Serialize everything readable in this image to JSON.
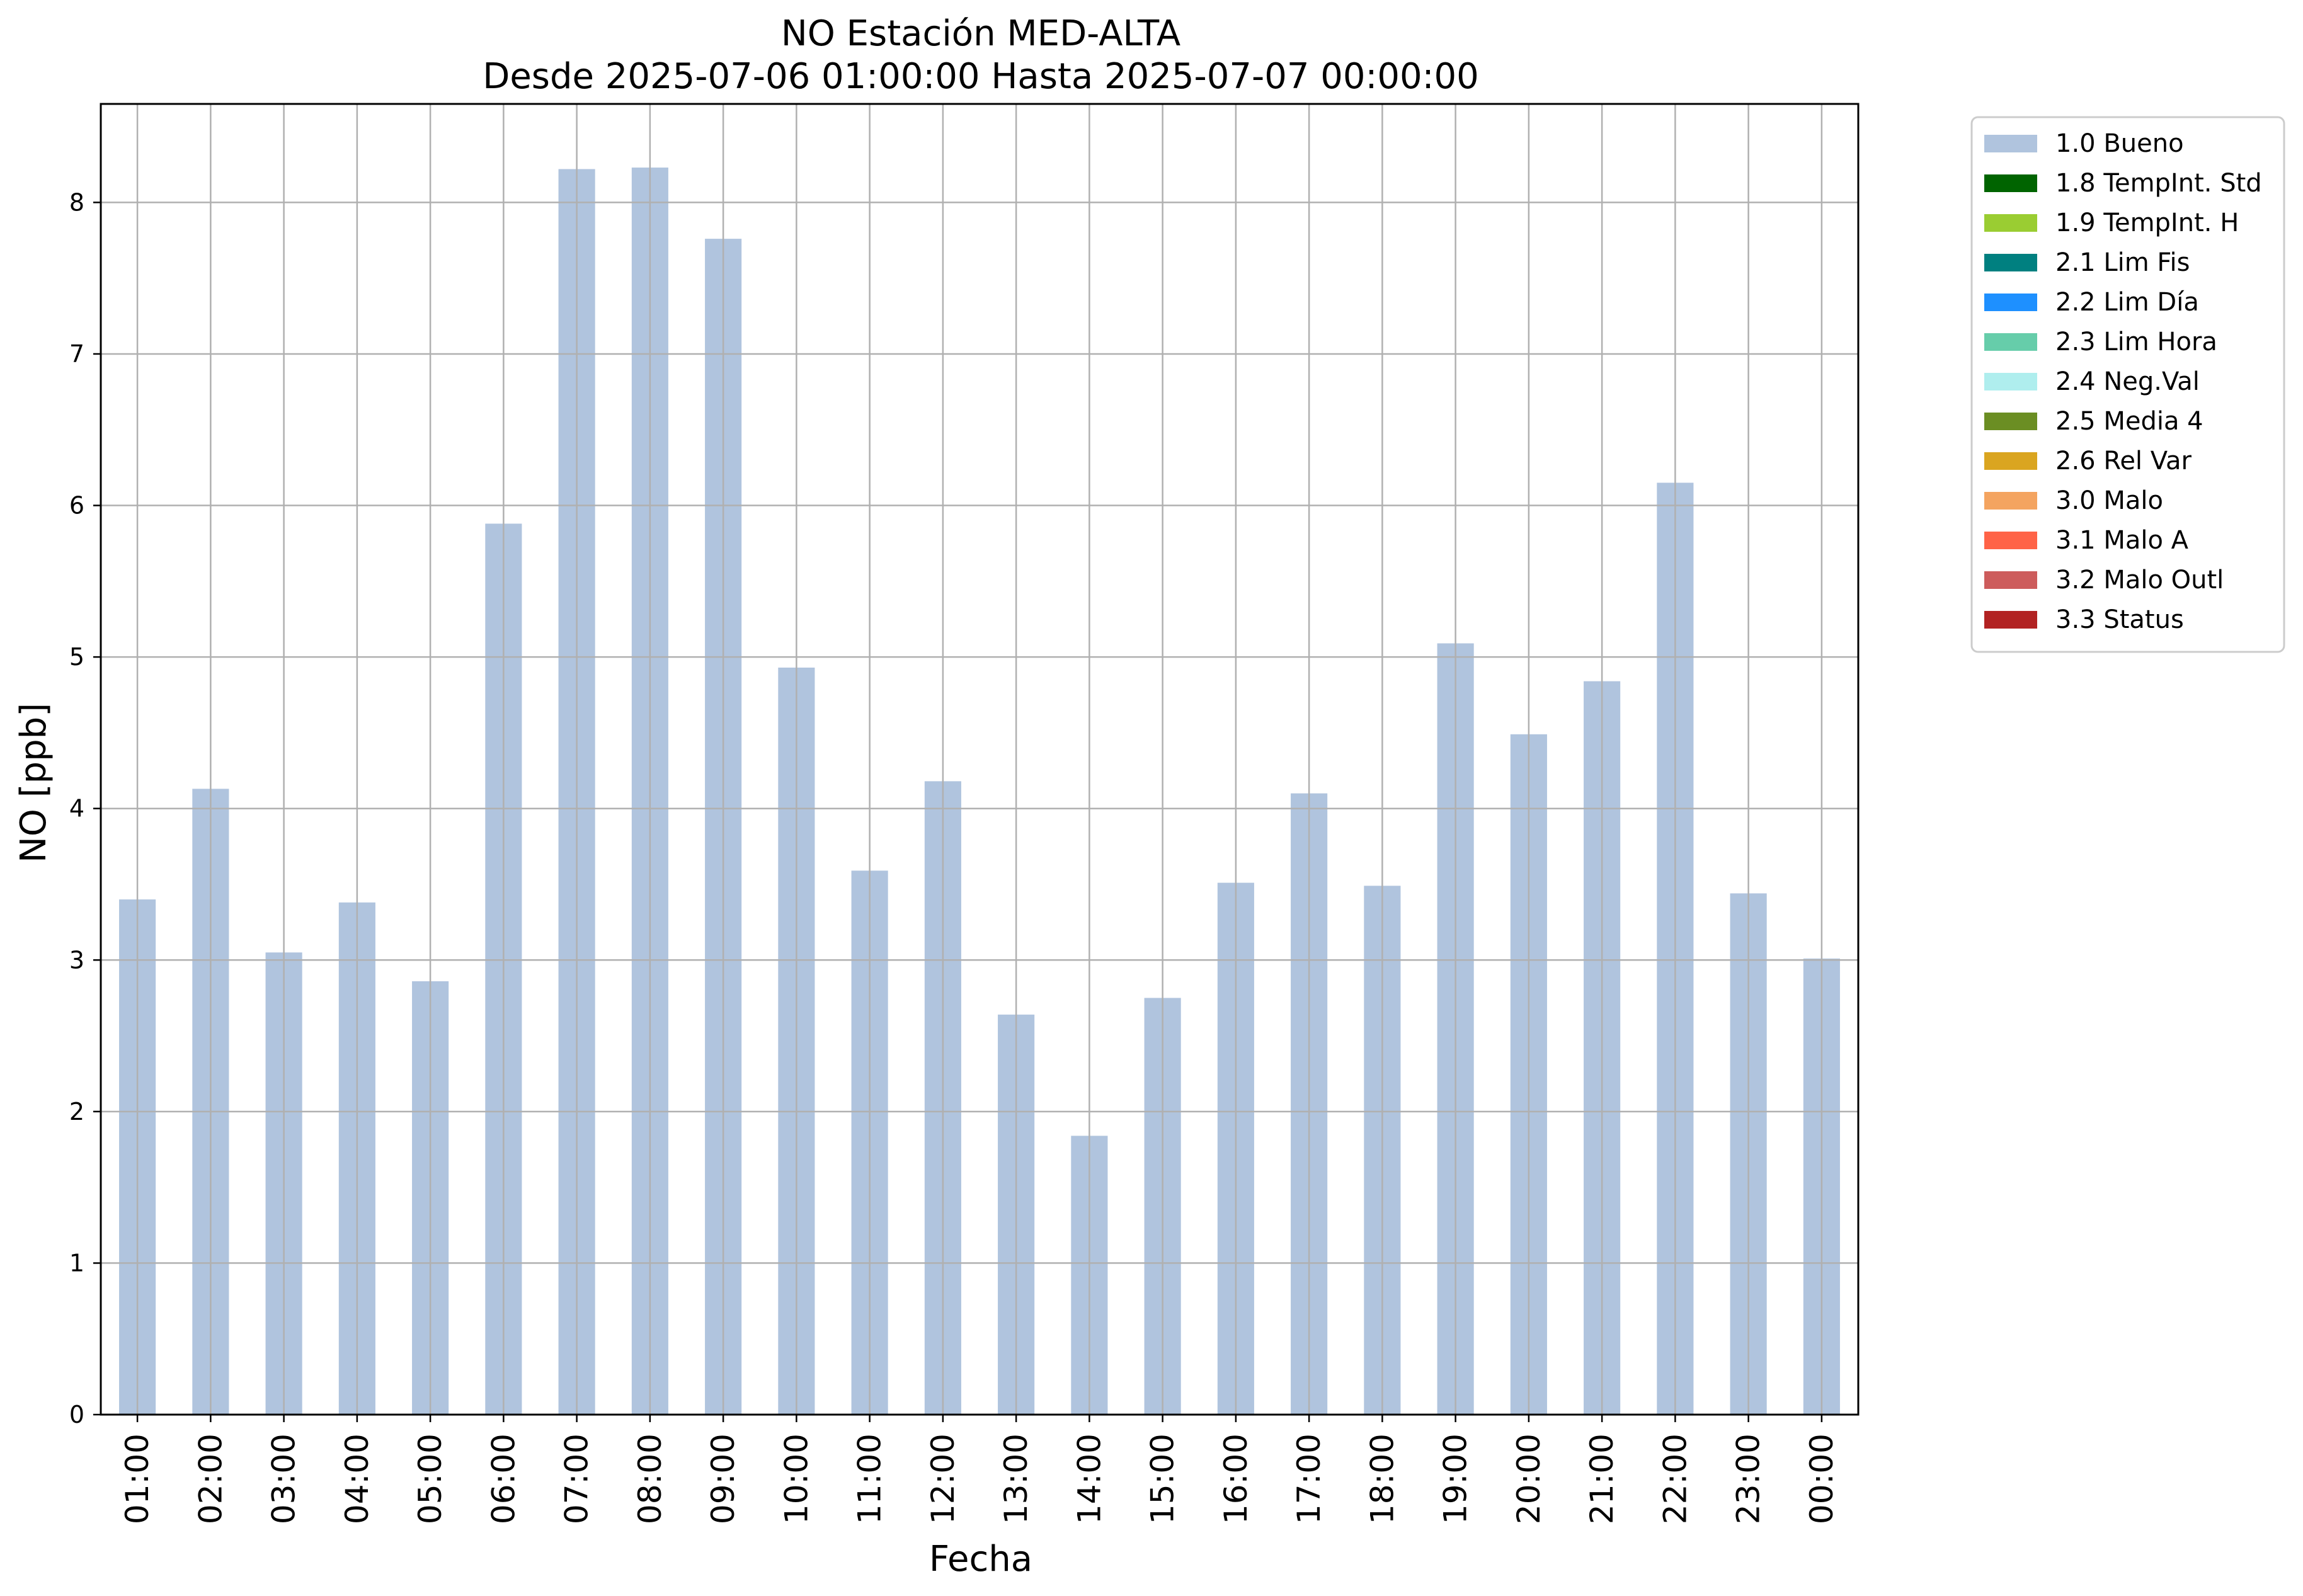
{
  "chart_data": {
    "type": "bar",
    "title": "NO Estación MED-ALTA",
    "subtitle": "Desde 2025-07-06 01:00:00 Hasta 2025-07-07 00:00:00",
    "xlabel": "Fecha",
    "ylabel": "NO [ppb]",
    "ylim": [
      0,
      8.65
    ],
    "yticks": [
      0,
      1,
      2,
      3,
      4,
      5,
      6,
      7,
      8
    ],
    "grid": true,
    "legend_position": "outside-top-right",
    "categories": [
      "01:00",
      "02:00",
      "03:00",
      "04:00",
      "05:00",
      "06:00",
      "07:00",
      "08:00",
      "09:00",
      "10:00",
      "11:00",
      "12:00",
      "13:00",
      "14:00",
      "15:00",
      "16:00",
      "17:00",
      "18:00",
      "19:00",
      "20:00",
      "21:00",
      "22:00",
      "23:00",
      "00:00"
    ],
    "series": [
      {
        "name": "1.0 Bueno",
        "color": "#b0c4de",
        "values": [
          3.4,
          4.13,
          3.05,
          3.38,
          2.86,
          5.88,
          8.22,
          8.23,
          7.76,
          4.93,
          3.59,
          4.18,
          2.64,
          1.84,
          2.75,
          3.51,
          4.1,
          3.49,
          5.09,
          4.49,
          4.84,
          6.15,
          3.44,
          3.01
        ]
      }
    ],
    "legend": [
      {
        "label": "1.0 Bueno",
        "color": "#b0c4de"
      },
      {
        "label": "1.8 TempInt. Std",
        "color": "#006400"
      },
      {
        "label": "1.9 TempInt. H",
        "color": "#9acd32"
      },
      {
        "label": "2.1 Lim Fis",
        "color": "#008080"
      },
      {
        "label": "2.2 Lim Día",
        "color": "#1e90ff"
      },
      {
        "label": "2.3 Lim Hora",
        "color": "#66cdaa"
      },
      {
        "label": "2.4 Neg.Val",
        "color": "#afeeee"
      },
      {
        "label": "2.5 Media 4",
        "color": "#6b8e23"
      },
      {
        "label": "2.6 Rel Var",
        "color": "#daa520"
      },
      {
        "label": "3.0 Malo",
        "color": "#f4a460"
      },
      {
        "label": "3.1 Malo A",
        "color": "#ff6347"
      },
      {
        "label": "3.2 Malo Outl",
        "color": "#cd5c5c"
      },
      {
        "label": "3.3 Status",
        "color": "#b22222"
      }
    ]
  }
}
